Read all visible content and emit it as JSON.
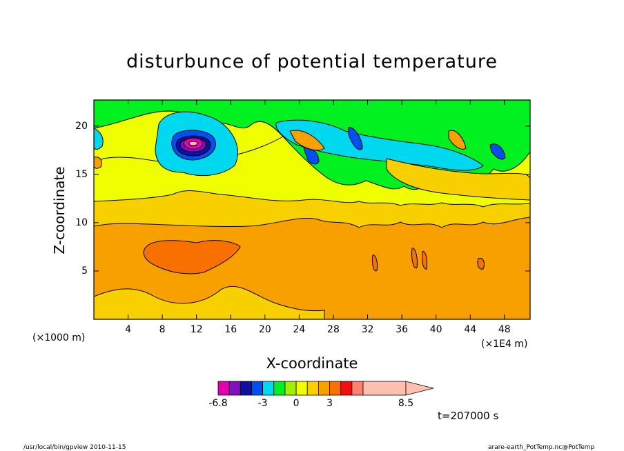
{
  "chart_data": {
    "type": "heatmap",
    "title": "disturbunce of potential temperature",
    "xlabel": "X-coordinate",
    "ylabel": "Z-coordinate",
    "x_unit_left": "(×1000 m)",
    "x_unit_right": "(×1E4 m)",
    "x_ticks": [
      "4",
      "8",
      "12",
      "16",
      "20",
      "24",
      "28",
      "32",
      "36",
      "40",
      "44",
      "48"
    ],
    "x_tick_values": [
      4,
      8,
      12,
      16,
      20,
      24,
      28,
      32,
      36,
      40,
      44,
      48
    ],
    "y_ticks": [
      "5",
      "10",
      "15",
      "20"
    ],
    "y_tick_values": [
      5,
      10,
      15,
      20
    ],
    "xlim": [
      0,
      51
    ],
    "ylim": [
      0,
      22.7
    ],
    "colorbar": {
      "levels": [
        -6.8,
        -6,
        -5,
        -4,
        -3,
        -2,
        -1,
        0,
        1,
        2,
        3,
        4,
        5,
        6,
        8.5
      ],
      "labels": [
        "-6.8",
        "-3",
        "0",
        "3",
        "8.5"
      ],
      "label_values": [
        -6.8,
        -3,
        0,
        3,
        8.5
      ],
      "colors": [
        "#e000b0",
        "#8010c0",
        "#1010a0",
        "#0050f0",
        "#00d8f0",
        "#00f020",
        "#a0f000",
        "#f0ff00",
        "#f8d000",
        "#f8a000",
        "#f87000",
        "#f01010",
        "#ff8070",
        "#ffc0b0"
      ]
    },
    "features": [
      {
        "x": 11.5,
        "z": 18.5,
        "value": -6.8
      },
      {
        "x": 11,
        "z": 7,
        "value": 4
      },
      {
        "x": 32,
        "z": 18,
        "value": -4
      },
      {
        "x": 46,
        "z": 17,
        "value": -4
      }
    ],
    "grid": false,
    "legend": "colorbar-bottom"
  },
  "time_label": "t=207000 s",
  "footer": {
    "left": "/usr/local/bin/gpview  2010-11-15",
    "right": "arare-earth_PotTemp.nc@PotTemp"
  }
}
